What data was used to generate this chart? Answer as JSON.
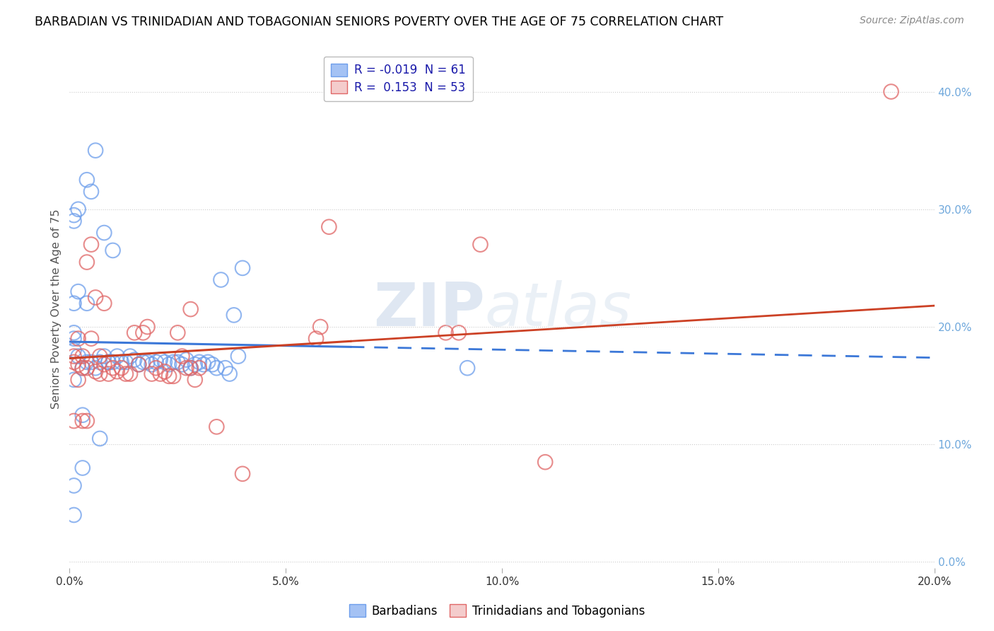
{
  "title": "BARBADIAN VS TRINIDADIAN AND TOBAGONIAN SENIORS POVERTY OVER THE AGE OF 75 CORRELATION CHART",
  "source": "Source: ZipAtlas.com",
  "ylabel": "Seniors Poverty Over the Age of 75",
  "xlim": [
    0.0,
    0.2
  ],
  "ylim": [
    -0.005,
    0.435
  ],
  "xticks": [
    0.0,
    0.05,
    0.1,
    0.15,
    0.2
  ],
  "xticklabels": [
    "0.0%",
    "5.0%",
    "10.0%",
    "15.0%",
    "20.0%"
  ],
  "yticks_right": [
    0.0,
    0.1,
    0.2,
    0.3,
    0.4
  ],
  "yticklabels_right": [
    "0.0%",
    "10.0%",
    "20.0%",
    "30.0%",
    "40.0%"
  ],
  "blue_color": "#a4c2f4",
  "pink_color": "#f4cccc",
  "blue_edge_color": "#6d9eeb",
  "pink_edge_color": "#e06666",
  "blue_line_color": "#3c78d8",
  "pink_line_color": "#cc4125",
  "blue_R": -0.019,
  "blue_N": 61,
  "pink_R": 0.153,
  "pink_N": 53,
  "legend_blue_label": "Barbadians",
  "legend_pink_label": "Trinidadians and Tobagonians",
  "watermark_zip": "ZIP",
  "watermark_atlas": "atlas",
  "background_color": "#ffffff",
  "grid_color": "#cccccc",
  "title_color": "#000000",
  "right_tick_color": "#6fa8dc",
  "blue_x": [
    0.001,
    0.002,
    0.003,
    0.004,
    0.005,
    0.006,
    0.007,
    0.008,
    0.009,
    0.01,
    0.011,
    0.012,
    0.013,
    0.014,
    0.015,
    0.016,
    0.017,
    0.018,
    0.019,
    0.02,
    0.021,
    0.022,
    0.023,
    0.024,
    0.025,
    0.026,
    0.027,
    0.028,
    0.029,
    0.03,
    0.031,
    0.032,
    0.033,
    0.034,
    0.035,
    0.036,
    0.037,
    0.038,
    0.039,
    0.04,
    0.001,
    0.002,
    0.003,
    0.004,
    0.005,
    0.006,
    0.007,
    0.008,
    0.009,
    0.01,
    0.001,
    0.002,
    0.003,
    0.004,
    0.001,
    0.001,
    0.001,
    0.001,
    0.092,
    0.001,
    0.001
  ],
  "blue_y": [
    0.19,
    0.175,
    0.165,
    0.17,
    0.17,
    0.165,
    0.17,
    0.175,
    0.17,
    0.17,
    0.175,
    0.17,
    0.17,
    0.175,
    0.172,
    0.168,
    0.17,
    0.17,
    0.168,
    0.17,
    0.172,
    0.17,
    0.168,
    0.17,
    0.17,
    0.168,
    0.172,
    0.165,
    0.168,
    0.17,
    0.168,
    0.17,
    0.168,
    0.165,
    0.24,
    0.165,
    0.16,
    0.21,
    0.175,
    0.25,
    0.29,
    0.3,
    0.08,
    0.325,
    0.315,
    0.35,
    0.105,
    0.28,
    0.17,
    0.265,
    0.22,
    0.23,
    0.125,
    0.22,
    0.04,
    0.065,
    0.155,
    0.195,
    0.165,
    0.295,
    0.18
  ],
  "pink_x": [
    0.001,
    0.002,
    0.003,
    0.004,
    0.005,
    0.006,
    0.007,
    0.008,
    0.009,
    0.01,
    0.011,
    0.012,
    0.013,
    0.014,
    0.015,
    0.016,
    0.017,
    0.018,
    0.019,
    0.02,
    0.021,
    0.022,
    0.023,
    0.024,
    0.025,
    0.026,
    0.027,
    0.028,
    0.029,
    0.03,
    0.001,
    0.002,
    0.003,
    0.004,
    0.005,
    0.006,
    0.007,
    0.008,
    0.001,
    0.002,
    0.003,
    0.004,
    0.058,
    0.057,
    0.09,
    0.087,
    0.06,
    0.095,
    0.028,
    0.034,
    0.04,
    0.11,
    0.19
  ],
  "pink_y": [
    0.17,
    0.168,
    0.165,
    0.165,
    0.19,
    0.162,
    0.16,
    0.168,
    0.16,
    0.165,
    0.162,
    0.165,
    0.16,
    0.16,
    0.195,
    0.168,
    0.195,
    0.2,
    0.16,
    0.165,
    0.16,
    0.162,
    0.158,
    0.158,
    0.195,
    0.175,
    0.165,
    0.215,
    0.155,
    0.165,
    0.175,
    0.19,
    0.175,
    0.255,
    0.27,
    0.225,
    0.175,
    0.22,
    0.12,
    0.155,
    0.12,
    0.12,
    0.2,
    0.19,
    0.195,
    0.195,
    0.285,
    0.27,
    0.165,
    0.115,
    0.075,
    0.085,
    0.4
  ]
}
